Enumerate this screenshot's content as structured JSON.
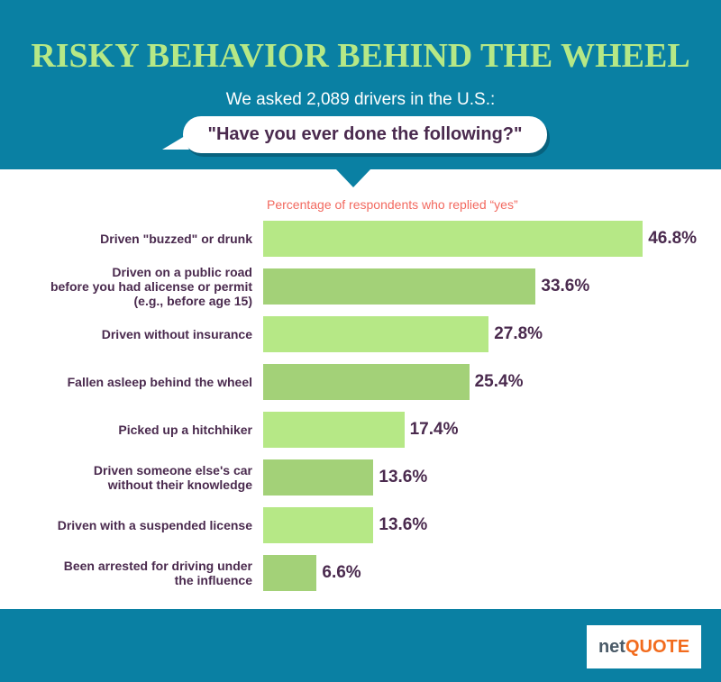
{
  "header": {
    "title": "RISKY BEHAVIOR BEHIND THE WHEEL",
    "subtitle": "We asked 2,089 drivers in the U.S.:",
    "question": "\"Have you ever done the following?\""
  },
  "chart_data": {
    "type": "bar",
    "orientation": "horizontal",
    "title": "RISKY BEHAVIOR BEHIND THE WHEEL",
    "xlabel": "Percentage of respondents who replied “yes”",
    "categories": [
      "Driven \"buzzed\" or drunk",
      "Driven on a public road\nbefore you had alicense or permit\n(e.g., before age 15)",
      "Driven without insurance",
      "Fallen asleep behind the wheel",
      "Picked up a hitchhiker",
      "Driven someone else's car\nwithout their knowledge",
      "Driven with a suspended license",
      "Been arrested for driving under\nthe influence"
    ],
    "values": [
      46.8,
      33.6,
      27.8,
      25.4,
      17.4,
      13.6,
      13.6,
      6.6
    ],
    "value_labels": [
      "46.8%",
      "33.6%",
      "27.8%",
      "25.4%",
      "17.4%",
      "13.6%",
      "13.6%",
      "6.6%"
    ],
    "colors": [
      "#b6e886",
      "#a3d178"
    ]
  },
  "footer": {
    "logo_left": "net",
    "logo_right": "QUOTE"
  }
}
